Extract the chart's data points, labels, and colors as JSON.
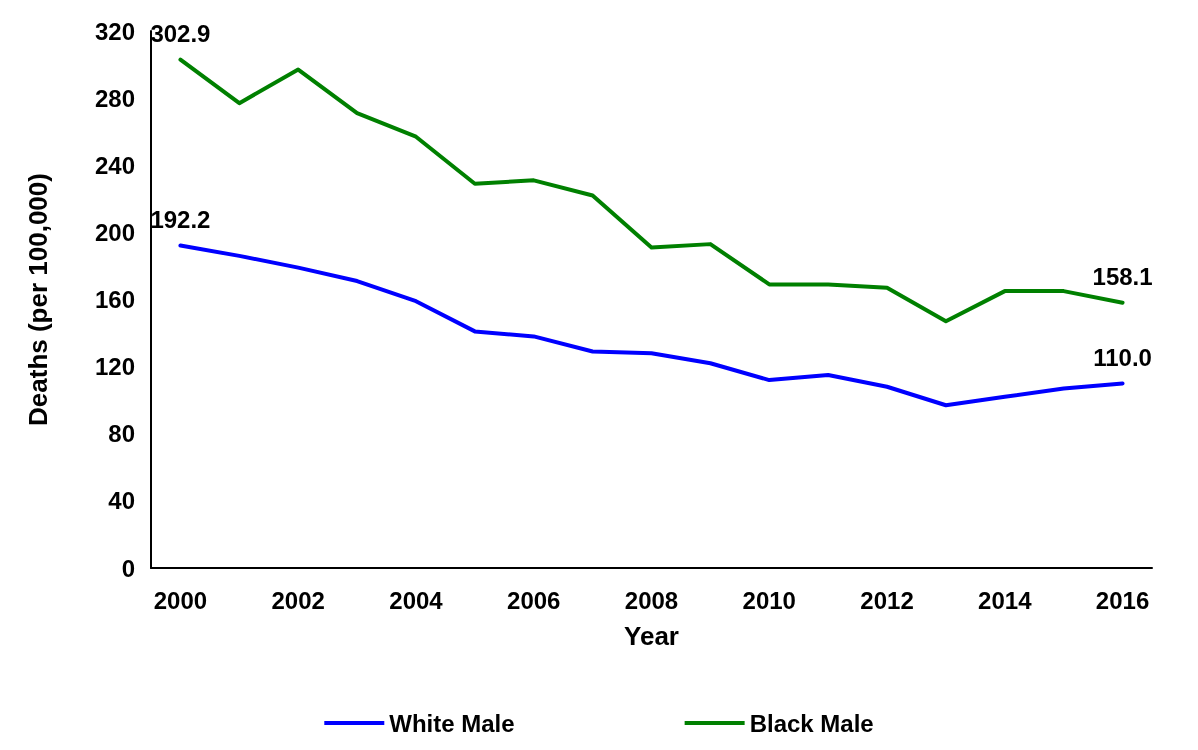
{
  "chart_data": {
    "type": "line",
    "xlabel": "Year",
    "ylabel": "Deaths (per 100,000)",
    "categories": [
      "2000",
      null,
      "2002",
      null,
      "2004",
      null,
      "2006",
      null,
      "2008",
      null,
      "2010",
      null,
      "2012",
      null,
      "2014",
      null,
      "2016"
    ],
    "series": [
      {
        "name": "White Male",
        "color": "#0000ff",
        "values": [
          192.2,
          186,
          179,
          171,
          159,
          141,
          138,
          129,
          128,
          122,
          112,
          115,
          108,
          97,
          102,
          107,
          110.0
        ],
        "value_labels": [
          "192.2",
          null,
          null,
          null,
          null,
          null,
          null,
          null,
          null,
          null,
          null,
          null,
          null,
          null,
          null,
          null,
          "110.0"
        ]
      },
      {
        "name": "Black Male",
        "color": "#008000",
        "values": [
          302.9,
          277,
          297,
          271,
          257,
          229,
          231,
          222,
          191,
          193,
          169,
          169,
          167,
          147,
          165,
          165,
          158.1
        ],
        "value_labels": [
          "302.9",
          null,
          null,
          null,
          null,
          null,
          null,
          null,
          null,
          null,
          null,
          null,
          null,
          null,
          null,
          null,
          "158.1"
        ]
      }
    ],
    "ylim": [
      0,
      320
    ],
    "yticks": [
      0,
      40,
      80,
      120,
      160,
      200,
      240,
      280,
      320
    ],
    "grid": false,
    "legend": "bottom"
  }
}
